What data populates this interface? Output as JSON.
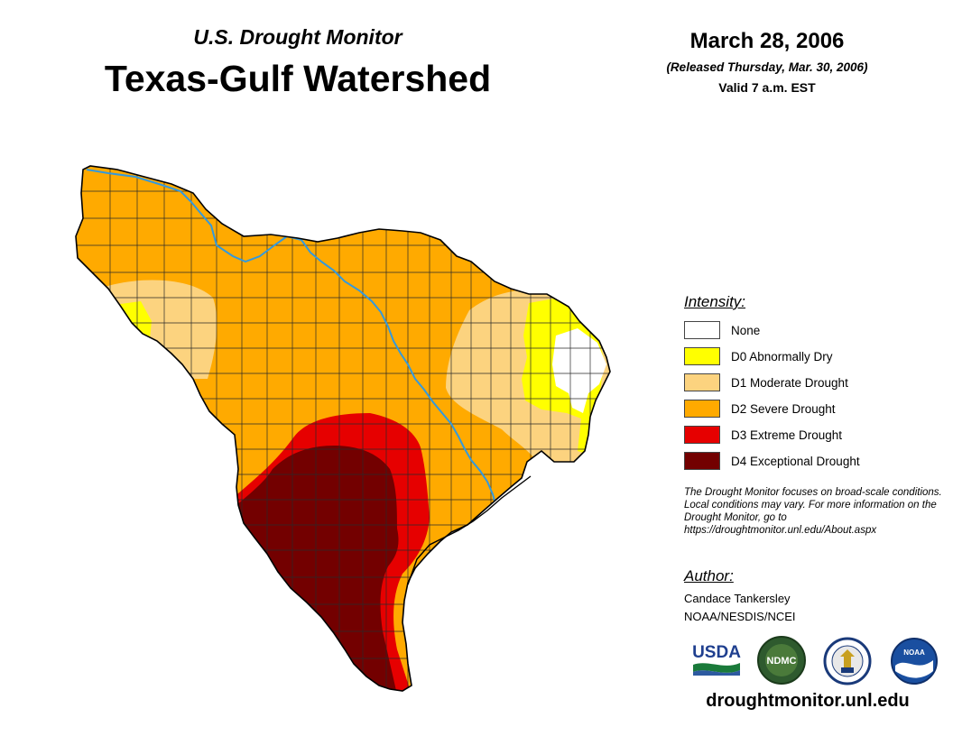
{
  "header": {
    "subtitle": "U.S. Drought Monitor",
    "title": "Texas-Gulf Watershed",
    "date": "March 28, 2006",
    "released": "(Released Thursday, Mar. 30, 2006)",
    "valid": "Valid 7 a.m. EST"
  },
  "legend": {
    "heading": "Intensity:",
    "items": [
      {
        "label": "None",
        "color": "#ffffff"
      },
      {
        "label": "D0 Abnormally Dry",
        "color": "#ffff00"
      },
      {
        "label": "D1 Moderate Drought",
        "color": "#fcd37f"
      },
      {
        "label": "D2 Severe Drought",
        "color": "#ffaa00"
      },
      {
        "label": "D3 Extreme Drought",
        "color": "#e60000"
      },
      {
        "label": "D4 Exceptional Drought",
        "color": "#730000"
      }
    ]
  },
  "note": "The Drought Monitor focuses on broad-scale conditions. Local conditions may vary. For more information on the Drought Monitor, go to https://droughtmonitor.unl.edu/About.aspx",
  "author": {
    "heading": "Author:",
    "name": "Candace Tankersley",
    "org": "NOAA/NESDIS/NCEI"
  },
  "logos": {
    "usda": "USDA",
    "ndmc": "NDMC",
    "noaa": "NOAA"
  },
  "url": "droughtmonitor.unl.edu",
  "colors": {
    "river": "#3399dd",
    "county_line": "#333333"
  }
}
